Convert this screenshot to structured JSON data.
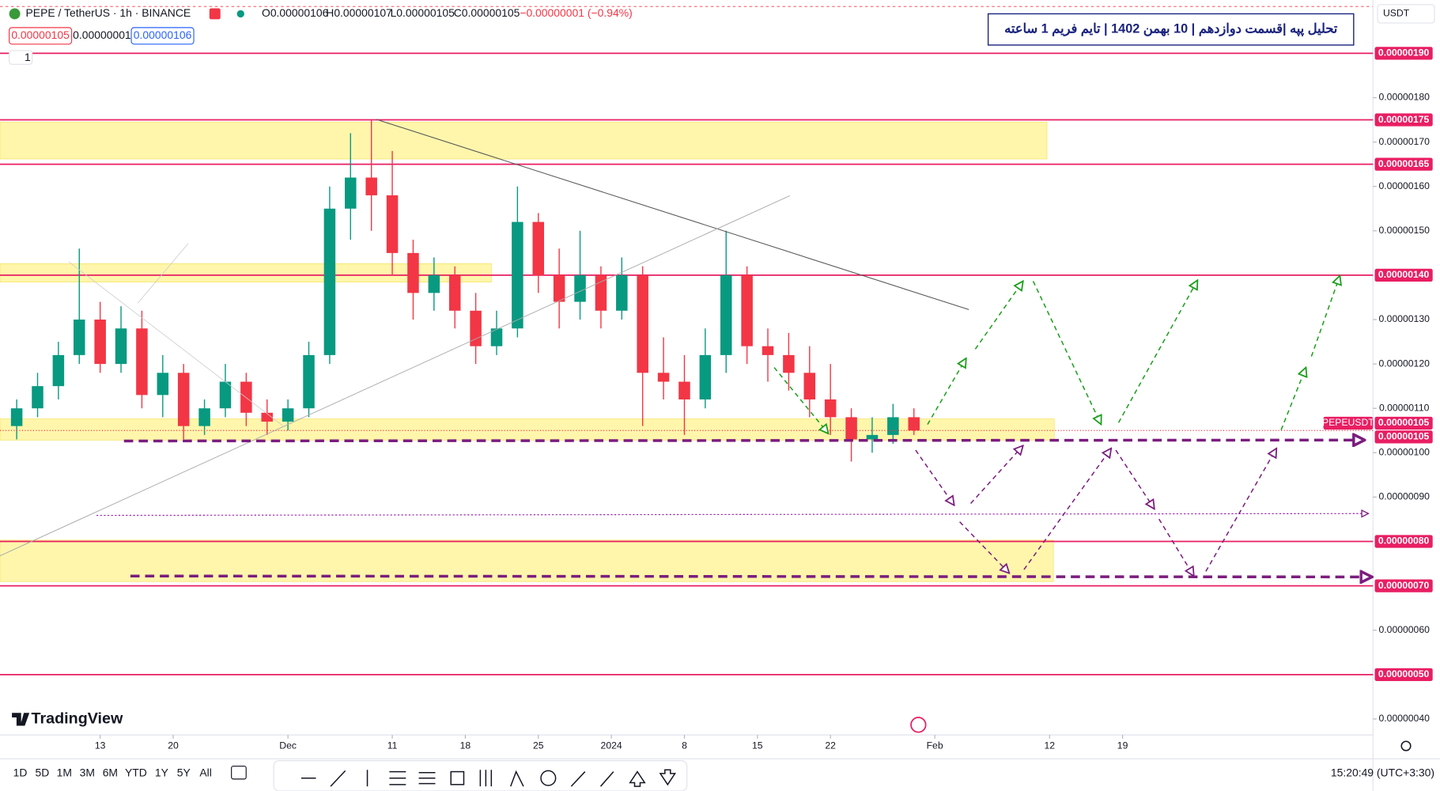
{
  "header": {
    "symbol": "PEPE / TetherUS · 1h · BINANCE",
    "open": "O0.00000106",
    "high": "H0.00000107",
    "low": "L0.00000105",
    "close": "C0.00000105",
    "change": "−0.00000001 (−0.94%)",
    "sell": "0.00000105",
    "spread": "0.00000001",
    "buy": "0.00000106",
    "indicator_count": "1"
  },
  "annotation": "تحلیل پپه |قسمت دوازدهم | 10 بهمن 1402 | تایم فریم 1 ساعته",
  "currency": "USDT",
  "logo": "TradingView",
  "toolbar": {
    "ranges": [
      "1D",
      "5D",
      "1M",
      "3M",
      "6M",
      "YTD",
      "1Y",
      "5Y",
      "All"
    ],
    "clock": "15:20:49 (UTC+3:30)"
  },
  "chart_data": {
    "type": "candlestick",
    "x": [
      -8,
      -6,
      -4,
      -2,
      0,
      2,
      4,
      6,
      8,
      10,
      12,
      14,
      16,
      18,
      20,
      22,
      24,
      26,
      28,
      30,
      32,
      34,
      36,
      38,
      40,
      42,
      44,
      46,
      48,
      50,
      52,
      54,
      56,
      58,
      60,
      62,
      64,
      66,
      68,
      70,
      72,
      74,
      76,
      78
    ],
    "open": [
      1.06e-06,
      1.1e-06,
      1.15e-06,
      1.22e-06,
      1.3e-06,
      1.2e-06,
      1.28e-06,
      1.13e-06,
      1.18e-06,
      1.06e-06,
      1.1e-06,
      1.16e-06,
      1.09e-06,
      1.07e-06,
      1.1e-06,
      1.22e-06,
      1.55e-06,
      1.62e-06,
      1.58e-06,
      1.45e-06,
      1.36e-06,
      1.4e-06,
      1.32e-06,
      1.24e-06,
      1.28e-06,
      1.52e-06,
      1.4e-06,
      1.34e-06,
      1.4e-06,
      1.32e-06,
      1.4e-06,
      1.18e-06,
      1.16e-06,
      1.12e-06,
      1.22e-06,
      1.4e-06,
      1.24e-06,
      1.22e-06,
      1.18e-06,
      1.12e-06,
      1.08e-06,
      1.03e-06,
      1.04e-06,
      1.08e-06
    ],
    "high": [
      1.12e-06,
      1.18e-06,
      1.25e-06,
      1.46e-06,
      1.34e-06,
      1.33e-06,
      1.32e-06,
      1.22e-06,
      1.2e-06,
      1.12e-06,
      1.2e-06,
      1.18e-06,
      1.12e-06,
      1.12e-06,
      1.25e-06,
      1.6e-06,
      1.72e-06,
      1.75e-06,
      1.68e-06,
      1.48e-06,
      1.44e-06,
      1.42e-06,
      1.36e-06,
      1.32e-06,
      1.6e-06,
      1.54e-06,
      1.46e-06,
      1.5e-06,
      1.42e-06,
      1.44e-06,
      1.42e-06,
      1.26e-06,
      1.22e-06,
      1.28e-06,
      1.5e-06,
      1.42e-06,
      1.28e-06,
      1.27e-06,
      1.24e-06,
      1.2e-06,
      1.1e-06,
      1.08e-06,
      1.11e-06,
      1.1e-06
    ],
    "low": [
      1.03e-06,
      1.08e-06,
      1.12e-06,
      1.2e-06,
      1.18e-06,
      1.18e-06,
      1.1e-06,
      1.08e-06,
      1.03e-06,
      1.04e-06,
      1.08e-06,
      1.06e-06,
      1.04e-06,
      1.05e-06,
      1.08e-06,
      1.2e-06,
      1.48e-06,
      1.5e-06,
      1.4e-06,
      1.3e-06,
      1.32e-06,
      1.28e-06,
      1.2e-06,
      1.22e-06,
      1.26e-06,
      1.36e-06,
      1.28e-06,
      1.3e-06,
      1.28e-06,
      1.3e-06,
      1.06e-06,
      1.12e-06,
      1.04e-06,
      1.1e-06,
      1.18e-06,
      1.2e-06,
      1.16e-06,
      1.14e-06,
      1.08e-06,
      1.04e-06,
      9.8e-07,
      1e-06,
      1.02e-06,
      1.04e-06
    ],
    "close": [
      1.1e-06,
      1.15e-06,
      1.22e-06,
      1.3e-06,
      1.2e-06,
      1.28e-06,
      1.13e-06,
      1.18e-06,
      1.06e-06,
      1.1e-06,
      1.16e-06,
      1.09e-06,
      1.07e-06,
      1.1e-06,
      1.22e-06,
      1.55e-06,
      1.62e-06,
      1.58e-06,
      1.45e-06,
      1.36e-06,
      1.4e-06,
      1.32e-06,
      1.24e-06,
      1.28e-06,
      1.52e-06,
      1.4e-06,
      1.34e-06,
      1.4e-06,
      1.32e-06,
      1.4e-06,
      1.18e-06,
      1.16e-06,
      1.12e-06,
      1.22e-06,
      1.4e-06,
      1.24e-06,
      1.22e-06,
      1.18e-06,
      1.12e-06,
      1.08e-06,
      1.03e-06,
      1.04e-06,
      1.08e-06,
      1.05e-06
    ],
    "up_color": "#089981",
    "down_color": "#f23645",
    "xlim": [
      -9.6,
      122
    ],
    "xticks": [
      {
        "value": 0,
        "label": "13"
      },
      {
        "value": 7,
        "label": "20"
      },
      {
        "value": 18,
        "label": "Dec"
      },
      {
        "value": 28,
        "label": "11"
      },
      {
        "value": 35,
        "label": "18"
      },
      {
        "value": 42,
        "label": "25"
      },
      {
        "value": 49,
        "label": "2024"
      },
      {
        "value": 56,
        "label": "8"
      },
      {
        "value": 63,
        "label": "15"
      },
      {
        "value": 70,
        "label": "22"
      },
      {
        "value": 80,
        "label": "Feb"
      },
      {
        "value": 91,
        "label": "12"
      },
      {
        "value": 98,
        "label": "19"
      }
    ],
    "ylim": [
      3.64e-07,
      2.0035e-06
    ],
    "yticks": [
      {
        "value": 1.8e-06,
        "label": "0.00000180"
      },
      {
        "value": 1.7e-06,
        "label": "0.00000170"
      },
      {
        "value": 1.6e-06,
        "label": "0.00000160"
      },
      {
        "value": 1.5e-06,
        "label": "0.00000150"
      },
      {
        "value": 1.3e-06,
        "label": "0.00000130"
      },
      {
        "value": 1.2e-06,
        "label": "0.00000120"
      },
      {
        "value": 1.1e-06,
        "label": "0.00000110"
      },
      {
        "value": 1e-06,
        "label": "0.00000100"
      },
      {
        "value": 9e-07,
        "label": "0.00000090"
      },
      {
        "value": 6e-07,
        "label": "0.00000060"
      },
      {
        "value": 4e-07,
        "label": "0.00000040"
      }
    ],
    "levels": [
      {
        "value": 1.9e-06,
        "label": "0.00000190"
      },
      {
        "value": 1.75e-06,
        "label": "0.00000175"
      },
      {
        "value": 1.65e-06,
        "label": "0.00000165"
      },
      {
        "value": 1.4e-06,
        "label": "0.00000140"
      },
      {
        "value": 8e-07,
        "label": "0.00000080"
      },
      {
        "value": 7e-07,
        "label": "0.00000070"
      },
      {
        "value": 5e-07,
        "label": "0.00000050"
      }
    ],
    "level_color": "#e91e63",
    "price_symbol": "PEPEUSDT",
    "price_labels": [
      {
        "value": 1.05e-06,
        "label": "0.00000105"
      },
      {
        "value": 1.05e-06,
        "label": "0.00000105"
      }
    ]
  }
}
